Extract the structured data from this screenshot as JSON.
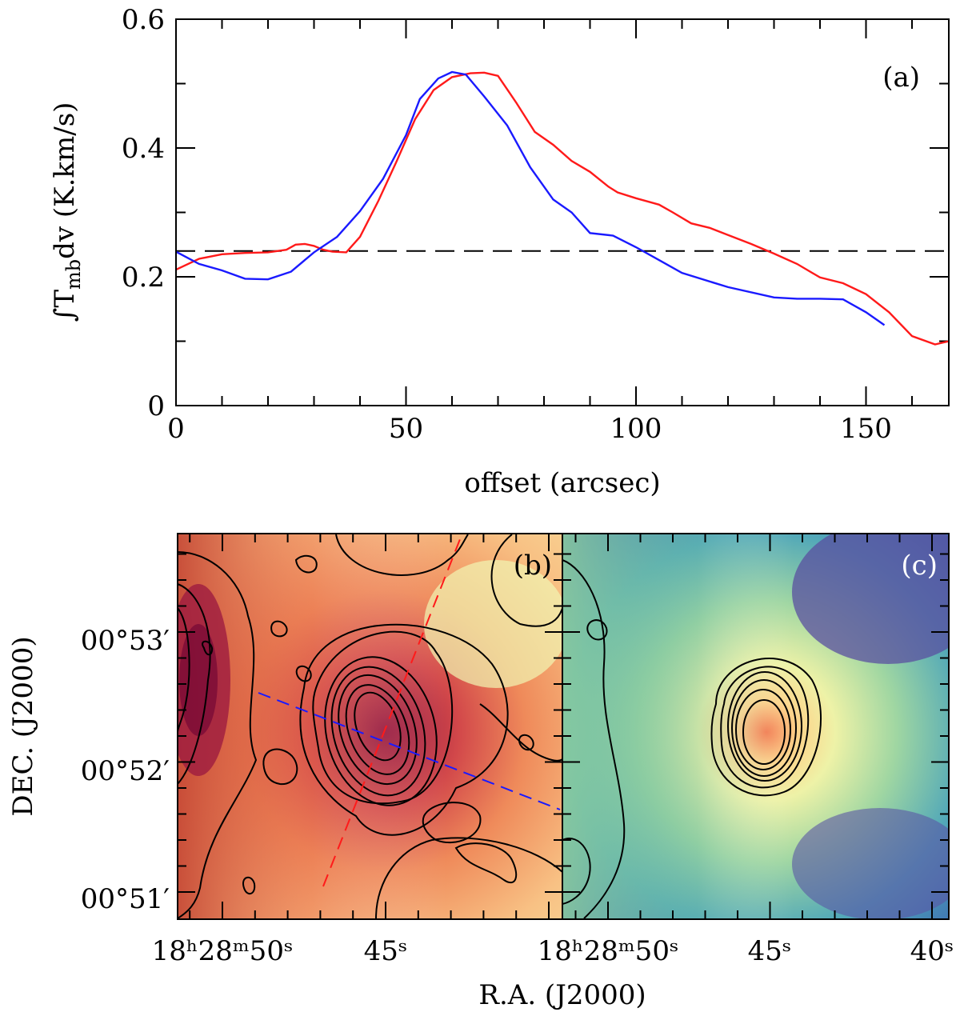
{
  "chart_data": [
    {
      "panel": "a",
      "type": "line",
      "panel_label": "(a)",
      "xlabel": "offset (arcsec)",
      "ylabel_main": "∫T",
      "ylabel_sub": "mb",
      "ylabel_tail": "dv (K.km/s)",
      "xlim": [
        0,
        168
      ],
      "ylim": [
        0,
        0.6
      ],
      "x_major_ticks": [
        0,
        50,
        100,
        150
      ],
      "x_tick_labels": [
        "0",
        "50",
        "100",
        "150"
      ],
      "y_major_ticks": [
        0,
        0.2,
        0.4,
        0.6
      ],
      "y_tick_labels": [
        "0",
        "0.2",
        "0.4",
        "0.6"
      ],
      "threshold": 0.24,
      "series": [
        {
          "name": "red",
          "color": "#ff1a1a",
          "x": [
            0,
            5,
            10,
            15,
            20,
            24,
            26,
            28,
            30,
            32,
            34,
            37,
            40,
            44,
            48,
            52,
            56,
            60,
            64,
            67,
            70,
            74,
            78,
            82,
            86,
            90,
            94,
            96,
            100,
            105,
            108,
            112,
            116,
            120,
            125,
            130,
            135,
            140,
            145,
            150,
            155,
            160,
            165,
            168
          ],
          "values": [
            0.211,
            0.228,
            0.235,
            0.237,
            0.238,
            0.242,
            0.25,
            0.251,
            0.248,
            0.242,
            0.239,
            0.238,
            0.262,
            0.318,
            0.38,
            0.445,
            0.49,
            0.51,
            0.516,
            0.517,
            0.512,
            0.47,
            0.425,
            0.405,
            0.38,
            0.363,
            0.34,
            0.331,
            0.322,
            0.312,
            0.3,
            0.283,
            0.276,
            0.265,
            0.251,
            0.236,
            0.22,
            0.199,
            0.19,
            0.173,
            0.145,
            0.108,
            0.095,
            0.1
          ]
        },
        {
          "name": "blue",
          "color": "#1a1aff",
          "x": [
            0,
            5,
            10,
            15,
            20,
            25,
            30,
            35,
            40,
            45,
            50,
            53,
            57,
            60,
            63,
            67,
            72,
            77,
            82,
            86,
            90,
            95,
            100,
            105,
            110,
            120,
            130,
            135,
            140,
            145,
            150,
            154
          ],
          "values": [
            0.239,
            0.22,
            0.21,
            0.197,
            0.196,
            0.208,
            0.238,
            0.262,
            0.302,
            0.352,
            0.42,
            0.476,
            0.508,
            0.518,
            0.514,
            0.48,
            0.435,
            0.37,
            0.32,
            0.3,
            0.268,
            0.264,
            0.246,
            0.226,
            0.206,
            0.184,
            0.168,
            0.166,
            0.166,
            0.165,
            0.145,
            0.125
          ]
        }
      ]
    },
    {
      "panel": "b",
      "type": "heatmap",
      "panel_label": "(b)",
      "colormap": "yellow-orange-red",
      "ylabel": "DEC. (J2000)",
      "y_tick_labels": [
        "00°53′",
        "00°52′",
        "00°51′"
      ],
      "x_tick_labels": [
        "18ʰ28ᵐ50ˢ",
        "45ˢ"
      ],
      "cuts": [
        {
          "name": "red-cut",
          "color": "#ff1a1a",
          "style": "dashed"
        },
        {
          "name": "blue-cut",
          "color": "#1a1aff",
          "style": "dashed"
        }
      ]
    },
    {
      "panel": "c",
      "type": "heatmap",
      "panel_label": "(c)",
      "colormap": "spectral",
      "x_tick_labels": [
        "18ʰ28ᵐ50ˢ",
        "45ˢ",
        "40ˢ"
      ]
    }
  ],
  "shared": {
    "xlabel": "R.A. (J2000)"
  }
}
